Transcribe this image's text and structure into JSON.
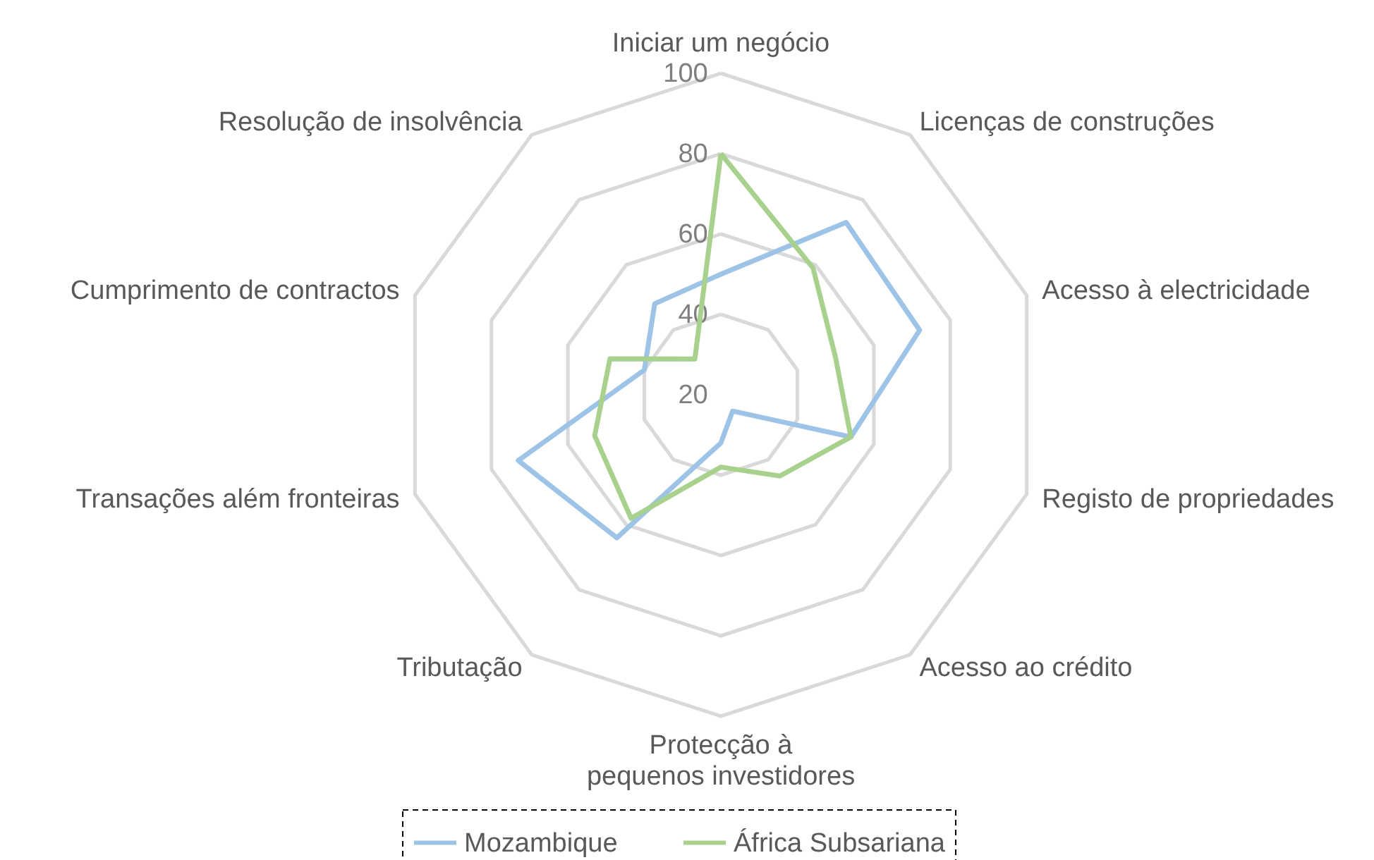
{
  "chart_data": {
    "type": "radar",
    "categories": [
      "Iniciar um negócio",
      "Licenças de construções",
      "Acesso à electricidade",
      "Registo de propriedades",
      "Acesso ao crédito",
      "Protecção à pequenos investidores",
      "Tributação",
      "Transações além fronteiras",
      "Cumprimento de contractos",
      "Resolução de insolvência"
    ],
    "series": [
      {
        "name": "Mozambique",
        "color": "#9dc3e6",
        "values": [
          50,
          73,
          72,
          54,
          25,
          32,
          64,
          73,
          40,
          48
        ]
      },
      {
        "name": "África Subsariana",
        "color": "#a9d18e",
        "values": [
          80,
          59,
          50,
          54,
          45,
          38,
          58,
          53,
          49,
          31
        ]
      }
    ],
    "ylim": [
      20,
      100
    ],
    "yticks": [
      20,
      40,
      60,
      80,
      100
    ],
    "grid": true,
    "legend": "bottom",
    "marker": "none",
    "line_style": "solid"
  }
}
